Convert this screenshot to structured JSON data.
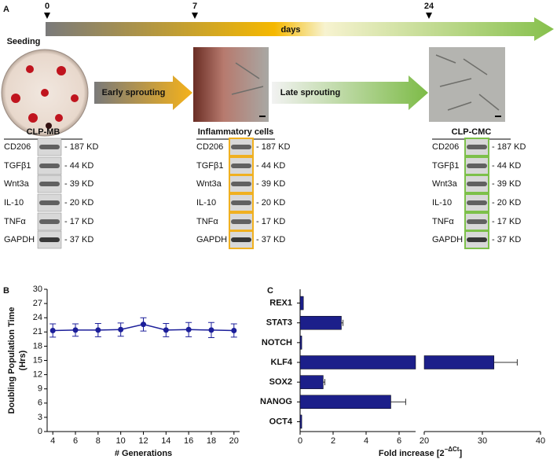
{
  "panel_a": {
    "label": "A",
    "timeline": {
      "ticks": [
        "0",
        "7",
        "24"
      ],
      "label": "days"
    },
    "seeding": "Seeding",
    "arrows": [
      "Early sprouting",
      "Late sprouting"
    ],
    "blots": [
      {
        "title": "CLP-MB",
        "rows": [
          [
            "CD206",
            "- 187 KD"
          ],
          [
            "TGFβ1",
            "- 44 KD"
          ],
          [
            "Wnt3a",
            "- 39 KD"
          ],
          [
            "IL-10",
            "- 20 KD"
          ],
          [
            "TNFα",
            "- 17 KD"
          ],
          [
            "GAPDH",
            "- 37 KD"
          ]
        ]
      },
      {
        "title": "Inflammatory cells",
        "rows": [
          [
            "CD206",
            "- 187 KD"
          ],
          [
            "TGFβ1",
            "- 44 KD"
          ],
          [
            "Wnt3a",
            "- 39 KD"
          ],
          [
            "IL-10",
            "- 20 KD"
          ],
          [
            "TNFα",
            "- 17 KD"
          ],
          [
            "GAPDH",
            "- 37 KD"
          ]
        ]
      },
      {
        "title": "CLP-CMC",
        "rows": [
          [
            "CD206",
            "- 187 KD"
          ],
          [
            "TGFβ1",
            "- 44 KD"
          ],
          [
            "Wnt3a",
            "- 39 KD"
          ],
          [
            "IL-10",
            "- 20 KD"
          ],
          [
            "TNFα",
            "- 17 KD"
          ],
          [
            "GAPDH",
            "- 37 KD"
          ]
        ]
      }
    ]
  },
  "chart_data": [
    {
      "type": "line",
      "panel": "B",
      "ylabel": [
        "Doubling Population Time",
        "(Hrs)"
      ],
      "xlabel": "# Generations",
      "x": [
        4,
        6,
        8,
        10,
        12,
        14,
        16,
        18,
        20
      ],
      "values": [
        21.3,
        21.4,
        21.4,
        21.5,
        22.6,
        21.4,
        21.5,
        21.4,
        21.3
      ],
      "errors": [
        1.4,
        1.3,
        1.4,
        1.4,
        1.4,
        1.4,
        1.5,
        1.6,
        1.4
      ],
      "color": "#1c1f9a",
      "xlim": [
        3.5,
        20.5
      ],
      "xticks": [
        4,
        6,
        8,
        10,
        12,
        14,
        16,
        18,
        20
      ],
      "ylim": [
        0,
        30
      ],
      "yticks": [
        0,
        3,
        6,
        9,
        12,
        15,
        18,
        21,
        24,
        27,
        30
      ]
    },
    {
      "type": "hbar",
      "panel": "C",
      "xlabel": {
        "text": "Fold increase [2",
        "superscript": "−ΔCt",
        "close": "]"
      },
      "categories": [
        "REX1",
        "STAT3",
        "NOTCH",
        "KLF4",
        "SOX2",
        "NANOG",
        "OCT4"
      ],
      "values": [
        0.2,
        2.5,
        0.1,
        32,
        1.4,
        5.5,
        0.1
      ],
      "errors": [
        null,
        0.1,
        null,
        4,
        0.1,
        0.9,
        null
      ],
      "color": "#1c1f8a",
      "xlim": [
        0,
        40
      ],
      "axis_break": [
        7,
        20
      ],
      "xticks": [
        0,
        2,
        4,
        6,
        20,
        30,
        40
      ]
    }
  ]
}
